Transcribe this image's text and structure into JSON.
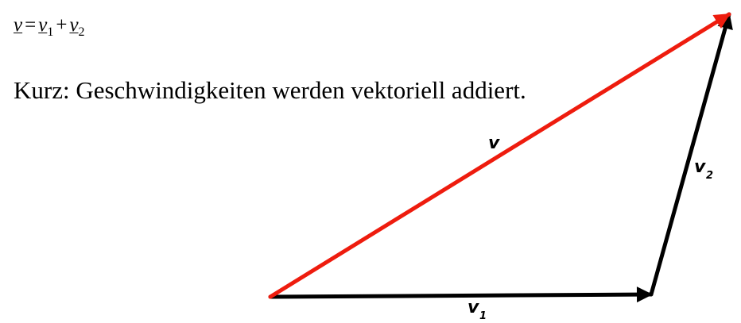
{
  "formula": {
    "v": "v",
    "eq": "=",
    "v1": "v",
    "sub1": "1",
    "plus": "+",
    "v2": "v",
    "sub2": "2"
  },
  "sentence": "Kurz: Geschwindigkeiten werden vektoriell addiert.",
  "diagram": {
    "label_v": "v",
    "label_v1": "v",
    "label_v1_sub": "1",
    "label_v2": "v",
    "label_v2_sub": "2",
    "colors": {
      "resultant": "#ee1c0e",
      "components": "#000000"
    }
  }
}
